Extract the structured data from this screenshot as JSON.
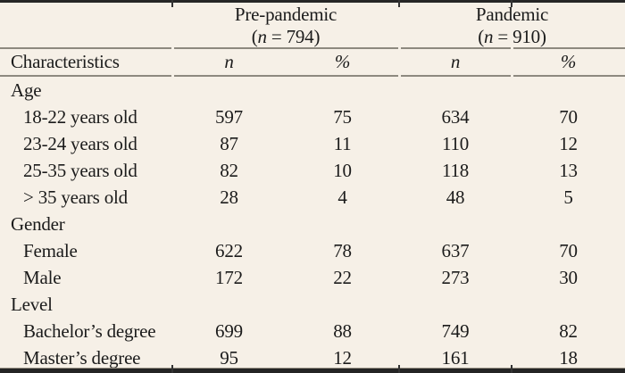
{
  "table": {
    "column_groups": [
      {
        "title": "Pre-pandemic",
        "sub_open": "(",
        "sub_n": "n",
        "sub_rest": " = 794)"
      },
      {
        "title": "Pandemic",
        "sub_open": "(",
        "sub_n": "n",
        "sub_rest": " = 910)"
      }
    ],
    "header": {
      "characteristics": "Characteristics",
      "columns": [
        "n",
        "%",
        "n",
        "%"
      ]
    },
    "rows": [
      {
        "label": "Age",
        "group": true,
        "values": [
          "",
          "",
          "",
          ""
        ]
      },
      {
        "label": "18-22 years old",
        "group": false,
        "values": [
          "597",
          "75",
          "634",
          "70"
        ]
      },
      {
        "label": "23-24 years old",
        "group": false,
        "values": [
          "87",
          "11",
          "110",
          "12"
        ]
      },
      {
        "label": "25-35 years old",
        "group": false,
        "values": [
          "82",
          "10",
          "118",
          "13"
        ]
      },
      {
        "label": "> 35 years old",
        "group": false,
        "values": [
          "28",
          "4",
          "48",
          "5"
        ]
      },
      {
        "label": "Gender",
        "group": true,
        "values": [
          "",
          "",
          "",
          ""
        ]
      },
      {
        "label": "Female",
        "group": false,
        "values": [
          "622",
          "78",
          "637",
          "70"
        ]
      },
      {
        "label": "Male",
        "group": false,
        "values": [
          "172",
          "22",
          "273",
          "30"
        ]
      },
      {
        "label": "Level",
        "group": true,
        "values": [
          "",
          "",
          "",
          ""
        ]
      },
      {
        "label": "Bachelor’s degree",
        "group": false,
        "values": [
          "699",
          "88",
          "749",
          "82"
        ]
      },
      {
        "label": "Master’s degree",
        "group": false,
        "values": [
          "95",
          "12",
          "161",
          "18"
        ]
      }
    ],
    "colors": {
      "background": "#f6f0e7",
      "text": "#1b1b1b",
      "thin_rule": "#8d897f",
      "thick_rule": "#242424"
    }
  }
}
